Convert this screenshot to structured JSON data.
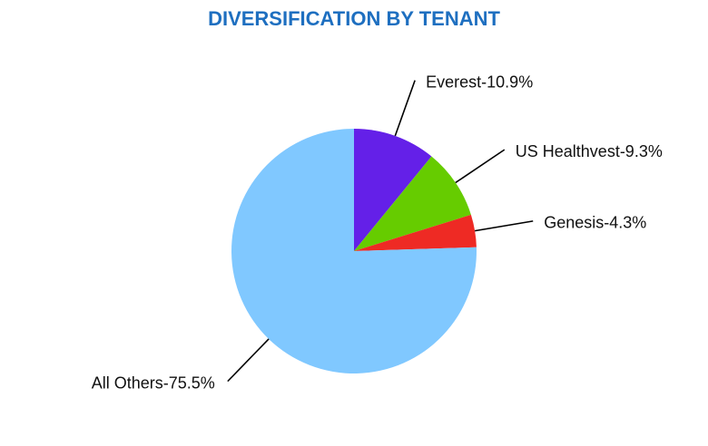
{
  "chart_data": {
    "type": "pie",
    "title": "DIVERSIFICATION BY TENANT",
    "value_labels": [
      "Everest-10.9%",
      "US Healthvest-9.3%",
      "Genesis-4.3%",
      "All Others-75.5%"
    ],
    "values": [
      10.9,
      9.3,
      4.3,
      75.5
    ],
    "colors": [
      "#6420e8",
      "#66cc00",
      "#ee2a24",
      "#80c8ff"
    ]
  }
}
